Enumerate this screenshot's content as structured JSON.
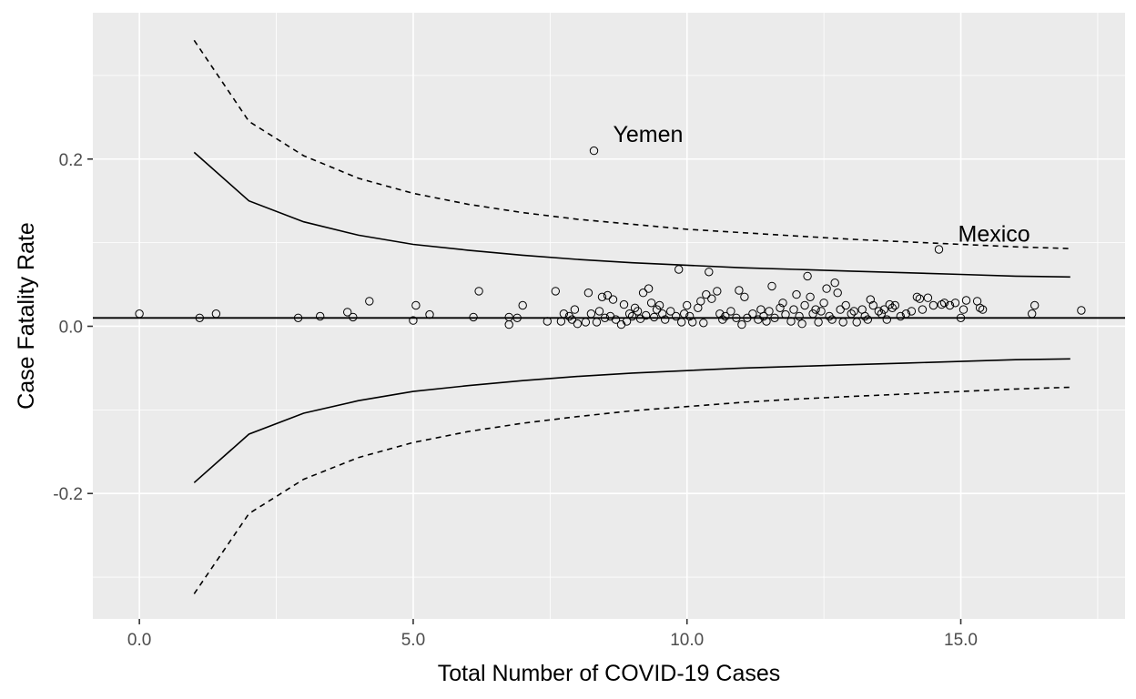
{
  "chart_data": {
    "type": "scatter",
    "title": "",
    "xlabel": "Total Number of COVID-19 Cases",
    "ylabel": "Case Fatality Rate",
    "xlim": [
      -0.85,
      18.0
    ],
    "ylim": [
      -0.35,
      0.375
    ],
    "x_ticks": [
      0.0,
      5.0,
      10.0,
      15.0
    ],
    "x_tick_labels": [
      "0.0",
      "5.0",
      "10.0",
      "15.0"
    ],
    "x_minor": [
      2.5,
      7.5,
      12.5,
      17.5
    ],
    "y_ticks": [
      -0.2,
      0.0,
      0.2
    ],
    "y_tick_labels": [
      "-0.2",
      "0.0",
      "0.2"
    ],
    "y_minor": [
      -0.3,
      -0.1,
      0.1,
      0.3
    ],
    "grid": true,
    "background": "#ebebeb",
    "reference_line": {
      "y": 0.01
    },
    "funnel": {
      "x": [
        1,
        2,
        3,
        4,
        5,
        6,
        7,
        8,
        9,
        10,
        11,
        12,
        13,
        14,
        15,
        16,
        17
      ],
      "upper_inner": [
        0.208,
        0.15,
        0.125,
        0.109,
        0.098,
        0.091,
        0.085,
        0.08,
        0.076,
        0.073,
        0.07,
        0.068,
        0.066,
        0.064,
        0.062,
        0.06,
        0.059
      ],
      "lower_inner": [
        -0.187,
        -0.129,
        -0.104,
        -0.089,
        -0.078,
        -0.071,
        -0.065,
        -0.06,
        -0.056,
        -0.053,
        -0.05,
        -0.048,
        -0.046,
        -0.044,
        -0.042,
        -0.04,
        -0.039
      ],
      "upper_outer": [
        0.342,
        0.245,
        0.204,
        0.177,
        0.159,
        0.146,
        0.136,
        0.128,
        0.122,
        0.116,
        0.112,
        0.108,
        0.104,
        0.101,
        0.098,
        0.095,
        0.093
      ],
      "lower_outer": [
        -0.32,
        -0.224,
        -0.183,
        -0.157,
        -0.139,
        -0.126,
        -0.116,
        -0.108,
        -0.101,
        -0.096,
        -0.091,
        -0.087,
        -0.084,
        -0.081,
        -0.078,
        -0.075,
        -0.073
      ]
    },
    "annotations": [
      {
        "label": "Yemen",
        "x": 8.65,
        "y": 0.23
      },
      {
        "label": "Mexico",
        "x": 14.95,
        "y": 0.111
      }
    ],
    "points": [
      [
        0.0,
        0.015
      ],
      [
        1.1,
        0.01
      ],
      [
        1.4,
        0.015
      ],
      [
        2.9,
        0.01
      ],
      [
        3.3,
        0.012
      ],
      [
        3.8,
        0.017
      ],
      [
        3.9,
        0.011
      ],
      [
        4.2,
        0.03
      ],
      [
        5.0,
        0.007
      ],
      [
        5.05,
        0.025
      ],
      [
        5.3,
        0.014
      ],
      [
        6.1,
        0.011
      ],
      [
        6.2,
        0.042
      ],
      [
        6.75,
        0.011
      ],
      [
        6.75,
        0.002
      ],
      [
        6.9,
        0.01
      ],
      [
        7.0,
        0.025
      ],
      [
        7.45,
        0.006
      ],
      [
        7.6,
        0.042
      ],
      [
        7.7,
        0.006
      ],
      [
        7.75,
        0.015
      ],
      [
        7.85,
        0.012
      ],
      [
        7.9,
        0.008
      ],
      [
        7.95,
        0.02
      ],
      [
        8.0,
        0.003
      ],
      [
        8.15,
        0.005
      ],
      [
        8.2,
        0.04
      ],
      [
        8.25,
        0.015
      ],
      [
        8.3,
        0.21
      ],
      [
        8.35,
        0.005
      ],
      [
        8.4,
        0.018
      ],
      [
        8.45,
        0.035
      ],
      [
        8.5,
        0.01
      ],
      [
        8.55,
        0.037
      ],
      [
        8.6,
        0.012
      ],
      [
        8.65,
        0.032
      ],
      [
        8.7,
        0.008
      ],
      [
        8.8,
        0.002
      ],
      [
        8.85,
        0.026
      ],
      [
        8.9,
        0.006
      ],
      [
        8.95,
        0.015
      ],
      [
        9.0,
        0.012
      ],
      [
        9.05,
        0.022
      ],
      [
        9.1,
        0.018
      ],
      [
        9.15,
        0.009
      ],
      [
        9.2,
        0.04
      ],
      [
        9.25,
        0.013
      ],
      [
        9.3,
        0.045
      ],
      [
        9.35,
        0.028
      ],
      [
        9.4,
        0.011
      ],
      [
        9.45,
        0.02
      ],
      [
        9.5,
        0.025
      ],
      [
        9.55,
        0.015
      ],
      [
        9.6,
        0.008
      ],
      [
        9.7,
        0.018
      ],
      [
        9.8,
        0.012
      ],
      [
        9.85,
        0.068
      ],
      [
        9.9,
        0.005
      ],
      [
        9.95,
        0.015
      ],
      [
        10.0,
        0.025
      ],
      [
        10.05,
        0.012
      ],
      [
        10.1,
        0.005
      ],
      [
        10.2,
        0.022
      ],
      [
        10.25,
        0.03
      ],
      [
        10.3,
        0.004
      ],
      [
        10.35,
        0.038
      ],
      [
        10.4,
        0.065
      ],
      [
        10.45,
        0.033
      ],
      [
        10.55,
        0.042
      ],
      [
        10.6,
        0.015
      ],
      [
        10.65,
        0.008
      ],
      [
        10.7,
        0.012
      ],
      [
        10.8,
        0.018
      ],
      [
        10.9,
        0.01
      ],
      [
        10.95,
        0.043
      ],
      [
        11.0,
        0.002
      ],
      [
        11.05,
        0.035
      ],
      [
        11.1,
        0.01
      ],
      [
        11.2,
        0.015
      ],
      [
        11.3,
        0.008
      ],
      [
        11.35,
        0.02
      ],
      [
        11.4,
        0.012
      ],
      [
        11.45,
        0.006
      ],
      [
        11.5,
        0.018
      ],
      [
        11.55,
        0.048
      ],
      [
        11.6,
        0.01
      ],
      [
        11.7,
        0.022
      ],
      [
        11.75,
        0.028
      ],
      [
        11.8,
        0.014
      ],
      [
        11.9,
        0.006
      ],
      [
        11.95,
        0.02
      ],
      [
        12.0,
        0.038
      ],
      [
        12.05,
        0.012
      ],
      [
        12.1,
        0.003
      ],
      [
        12.15,
        0.025
      ],
      [
        12.2,
        0.06
      ],
      [
        12.25,
        0.035
      ],
      [
        12.3,
        0.015
      ],
      [
        12.35,
        0.02
      ],
      [
        12.4,
        0.005
      ],
      [
        12.45,
        0.018
      ],
      [
        12.5,
        0.028
      ],
      [
        12.55,
        0.045
      ],
      [
        12.6,
        0.012
      ],
      [
        12.65,
        0.008
      ],
      [
        12.7,
        0.052
      ],
      [
        12.75,
        0.04
      ],
      [
        12.8,
        0.02
      ],
      [
        12.85,
        0.005
      ],
      [
        12.9,
        0.025
      ],
      [
        13.0,
        0.015
      ],
      [
        13.05,
        0.018
      ],
      [
        13.1,
        0.005
      ],
      [
        13.2,
        0.02
      ],
      [
        13.25,
        0.012
      ],
      [
        13.3,
        0.008
      ],
      [
        13.35,
        0.032
      ],
      [
        13.4,
        0.025
      ],
      [
        13.5,
        0.018
      ],
      [
        13.55,
        0.015
      ],
      [
        13.6,
        0.02
      ],
      [
        13.65,
        0.008
      ],
      [
        13.7,
        0.026
      ],
      [
        13.75,
        0.022
      ],
      [
        13.8,
        0.025
      ],
      [
        13.9,
        0.012
      ],
      [
        14.0,
        0.015
      ],
      [
        14.1,
        0.018
      ],
      [
        14.2,
        0.035
      ],
      [
        14.25,
        0.033
      ],
      [
        14.3,
        0.02
      ],
      [
        14.4,
        0.034
      ],
      [
        14.5,
        0.025
      ],
      [
        14.6,
        0.092
      ],
      [
        14.65,
        0.026
      ],
      [
        14.7,
        0.028
      ],
      [
        14.8,
        0.025
      ],
      [
        14.9,
        0.028
      ],
      [
        15.0,
        0.01
      ],
      [
        15.05,
        0.02
      ],
      [
        15.1,
        0.031
      ],
      [
        15.3,
        0.03
      ],
      [
        15.35,
        0.022
      ],
      [
        15.4,
        0.02
      ],
      [
        16.3,
        0.015
      ],
      [
        16.35,
        0.025
      ],
      [
        17.2,
        0.019
      ]
    ]
  }
}
